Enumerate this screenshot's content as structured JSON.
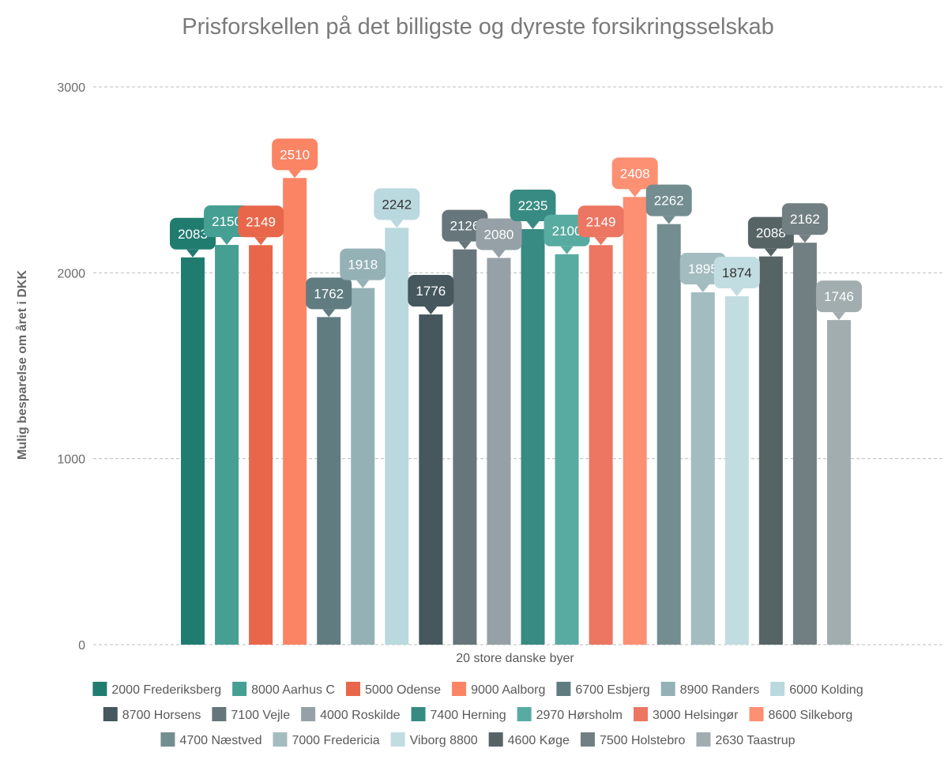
{
  "chart_data": {
    "type": "bar",
    "title": "Prisforskellen på det billigste og dyreste forsikringsselskab",
    "xlabel": "20 store danske byer",
    "ylabel": "Mulig besparelse om året i DKK",
    "ylim": [
      0,
      3000
    ],
    "yticks": [
      0,
      1000,
      2000,
      3000
    ],
    "grid": true,
    "legend_position": "bottom",
    "series": [
      {
        "name": "2000 Frederiksberg",
        "value": 2083,
        "color": "#217c70"
      },
      {
        "name": "8000 Aarhus C",
        "value": 2150,
        "color": "#469f93"
      },
      {
        "name": "5000 Odense",
        "value": 2149,
        "color": "#e8674a"
      },
      {
        "name": "9000 Aalborg",
        "value": 2510,
        "color": "#fb8464"
      },
      {
        "name": "6700 Esbjerg",
        "value": 1762,
        "color": "#607c81"
      },
      {
        "name": "8900 Randers",
        "value": 1918,
        "color": "#94b1b6"
      },
      {
        "name": "6000 Kolding",
        "value": 2242,
        "color": "#bad9de"
      },
      {
        "name": "8700 Horsens",
        "value": 1776,
        "color": "#46575d"
      },
      {
        "name": "7100 Vejle",
        "value": 2126,
        "color": "#66767b"
      },
      {
        "name": "4000 Roskilde",
        "value": 2080,
        "color": "#95a1a6"
      },
      {
        "name": "7400 Herning",
        "value": 2235,
        "color": "#378b82"
      },
      {
        "name": "2970 Hørsholm",
        "value": 2100,
        "color": "#58aba1"
      },
      {
        "name": "3000 Helsingør",
        "value": 2149,
        "color": "#ec7661"
      },
      {
        "name": "8600 Silkeborg",
        "value": 2408,
        "color": "#fd8f72"
      },
      {
        "name": "4700 Næstved",
        "value": 2262,
        "color": "#748d91"
      },
      {
        "name": "7000 Fredericia",
        "value": 1895,
        "color": "#a3bcc0"
      },
      {
        "name": "Viborg 8800",
        "value": 1874,
        "color": "#c2dde1"
      },
      {
        "name": "4600 Køge",
        "value": 2088,
        "color": "#576466"
      },
      {
        "name": "7500 Holstebro",
        "value": 2162,
        "color": "#727f82"
      },
      {
        "name": "2630 Taastrup",
        "value": 1746,
        "color": "#a2adaf"
      }
    ],
    "value_labels": [
      "2083",
      "2150",
      "2149",
      "2510",
      "1762",
      "1918",
      "2242",
      "1776",
      "2126",
      "2080",
      "2235",
      "2100",
      "2149",
      "2408",
      "2262",
      "1895",
      "1874",
      "2088",
      "2162",
      "1746"
    ],
    "value_label_text_colors": [
      "#ffffff",
      "#ffffff",
      "#ffffff",
      "#ffffff",
      "#ffffff",
      "#ffffff",
      "#333333",
      "#ffffff",
      "#ffffff",
      "#ffffff",
      "#ffffff",
      "#ffffff",
      "#ffffff",
      "#ffffff",
      "#ffffff",
      "#ffffff",
      "#333333",
      "#ffffff",
      "#ffffff",
      "#ffffff"
    ]
  }
}
